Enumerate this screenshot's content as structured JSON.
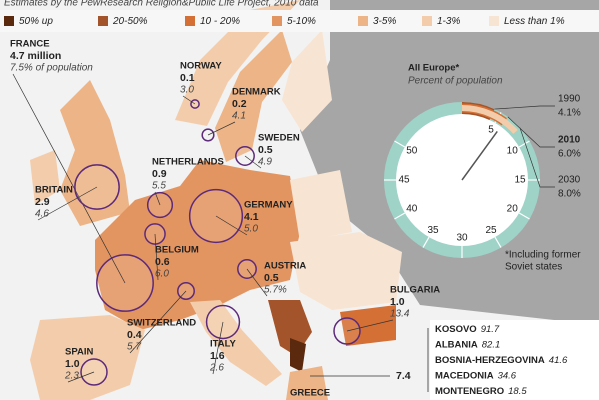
{
  "header": {
    "subtitle": "Estimates by the PewResearch Religion&Public Life Project, 2010 data"
  },
  "legend": [
    {
      "label": "50% up",
      "color": "#5b2a0e"
    },
    {
      "label": "20-50%",
      "color": "#a4542a"
    },
    {
      "label": "10 - 20%",
      "color": "#d46f35"
    },
    {
      "label": "5-10%",
      "color": "#e39561"
    },
    {
      "label": "3-5%",
      "color": "#ecb487"
    },
    {
      "label": "1-3%",
      "color": "#f3cdab"
    },
    {
      "label": "Less than 1%",
      "color": "#f8e4d2"
    }
  ],
  "map": {
    "countries": [
      {
        "name": "FRANCE",
        "population": "4.7 million",
        "share": "7.5% of population"
      },
      {
        "name": "NORWAY",
        "population": "0.1",
        "share": "3.0"
      },
      {
        "name": "DENMARK",
        "population": "0.2",
        "share": "4.1"
      },
      {
        "name": "SWEDEN",
        "population": "0.5",
        "share": "4.9"
      },
      {
        "name": "NETHERLANDS",
        "population": "0.9",
        "share": "5.5"
      },
      {
        "name": "BRITAIN",
        "population": "2.9",
        "share": "4.6"
      },
      {
        "name": "GERMANY",
        "population": "4.1",
        "share": "5.0"
      },
      {
        "name": "BELGIUM",
        "population": "0.6",
        "share": "6.0"
      },
      {
        "name": "AUSTRIA",
        "population": "0.5",
        "share": "5.7%"
      },
      {
        "name": "BULGARIA",
        "population": "1.0",
        "share": "13.4"
      },
      {
        "name": "SWITZERLAND",
        "population": "0.4",
        "share": "5.7"
      },
      {
        "name": "SPAIN",
        "population": "1.0",
        "share": "2.3"
      },
      {
        "name": "ITALY",
        "population": "1.6",
        "share": "2.6"
      },
      {
        "name": "GREECE"
      }
    ]
  },
  "balkans": {
    "total": "7.4",
    "rows": [
      {
        "name": "KOSOVO",
        "share": "91.7"
      },
      {
        "name": "ALBANIA",
        "share": "82.1"
      },
      {
        "name": "BOSNIA-HERZEGOVINA",
        "share": "41.6"
      },
      {
        "name": "MACEDONIA",
        "share": "34.6"
      },
      {
        "name": "MONTENEGRO",
        "share": "18.5"
      }
    ]
  },
  "inset": {
    "title": "All Europe*",
    "subtitle": "Percent of population",
    "points": [
      {
        "year": "1990",
        "value": 4.1,
        "label": "4.1%"
      },
      {
        "year": "2010",
        "value": 6.0,
        "label": "6.0%"
      },
      {
        "year": "2030",
        "value": 8.0,
        "label": "8.0%"
      }
    ],
    "scale": [
      5,
      10,
      15,
      20,
      25,
      30,
      35,
      40,
      45,
      50
    ],
    "note": [
      "*Including former",
      "Soviet states"
    ]
  }
}
